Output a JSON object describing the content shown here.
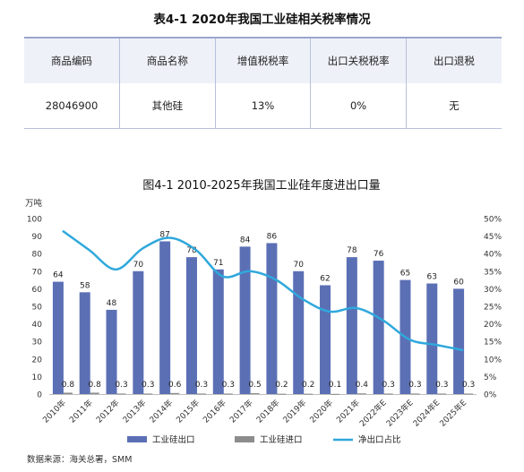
{
  "table": {
    "title": "表4-1 2020年我国工业硅相关税率情况",
    "headers": [
      "商品编码",
      "商品名称",
      "增值税税率",
      "出口关税税率",
      "出口退税"
    ],
    "rows": [
      [
        "28046900",
        "其他硅",
        "13%",
        "0%",
        "无"
      ]
    ]
  },
  "chart_data": {
    "type": "bar",
    "title": "图4-1 2010-2025年我国工业硅年度进出口量",
    "ylabel": "万吨",
    "ylim": [
      0,
      100
    ],
    "y2lim": [
      0,
      50
    ],
    "y_ticks": [
      "0",
      "10",
      "20",
      "30",
      "40",
      "50",
      "60",
      "70",
      "80",
      "90",
      "100"
    ],
    "y2_ticks": [
      "0%",
      "5%",
      "10%",
      "15%",
      "20%",
      "25%",
      "30%",
      "35%",
      "40%",
      "45%",
      "50%"
    ],
    "categories": [
      "2010年",
      "2011年",
      "2012年",
      "2013年",
      "2014年",
      "2015年",
      "2016年",
      "2017年",
      "2018年",
      "2019年",
      "2020年",
      "2021年",
      "2022年E",
      "2023年E",
      "2024年E",
      "2025年E"
    ],
    "series": [
      {
        "name": "工业硅出口",
        "type": "bar",
        "color": "#5b6fb5",
        "values": [
          64,
          58,
          48,
          70,
          87,
          78,
          71,
          84,
          86,
          70,
          62,
          78,
          76,
          65,
          63,
          60
        ],
        "labels": [
          "64",
          "58",
          "48",
          "70",
          "87",
          "78",
          "71",
          "84",
          "86",
          "70",
          "62",
          "78",
          "76",
          "65",
          "63",
          "60"
        ]
      },
      {
        "name": "工业硅进口",
        "type": "bar",
        "color": "#8c8c8c",
        "values": [
          0.8,
          0.8,
          0.3,
          0.3,
          0.6,
          0.3,
          0.3,
          0.5,
          0.2,
          0.2,
          0.1,
          0.4,
          0.3,
          0.3,
          0.3,
          0.3
        ],
        "labels": [
          "0.8",
          "0.8",
          "0.3",
          "0.3",
          "0.6",
          "0.3",
          "0.3",
          "0.5",
          "0.2",
          "0.2",
          "0.1",
          "0.4",
          "0.3",
          "0.3",
          "0.3",
          "0.3"
        ]
      },
      {
        "name": "净出口占比",
        "type": "line",
        "axis": "right",
        "color": "#2fa8dc",
        "values": [
          46.5,
          41,
          35.5,
          41.5,
          44.5,
          41,
          33.5,
          35,
          32.5,
          27,
          23.5,
          24.5,
          21,
          15.5,
          14,
          12.5
        ]
      }
    ],
    "legend_position": "bottom",
    "grid": false
  },
  "source": "数据来源：海关总署，SMM"
}
